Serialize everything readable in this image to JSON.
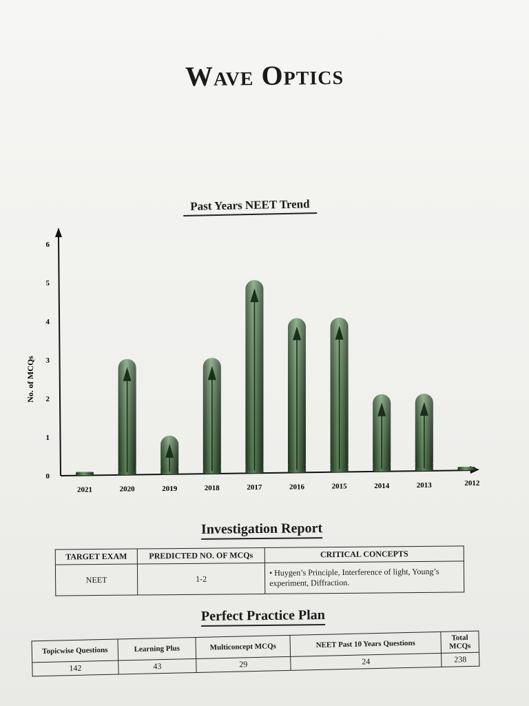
{
  "page": {
    "title": "Wave Optics"
  },
  "chart": {
    "heading": "Past Years NEET Trend"
  },
  "chart_data": {
    "type": "bar",
    "title": "Past Years NEET Trend",
    "xlabel": "",
    "ylabel": "No. of MCQs",
    "categories": [
      "2021",
      "2020",
      "2019",
      "2018",
      "2017",
      "2016",
      "2015",
      "2014",
      "2013",
      "2012"
    ],
    "values": [
      0,
      3,
      1,
      3,
      5,
      4,
      4,
      2,
      2,
      0
    ],
    "y_ticks": [
      "0",
      "1",
      "2",
      "3",
      "4",
      "5",
      "6"
    ],
    "ylim": [
      0,
      6
    ],
    "grid": false,
    "bar_color": "#3f6a3c"
  },
  "report": {
    "heading": "Investigation Report",
    "headers": [
      "TARGET EXAM",
      "PREDICTED NO. OF MCQs",
      "CRITICAL CONCEPTS"
    ],
    "row": {
      "exam": "NEET",
      "predicted": "1-2",
      "concepts": "• Huygen’s Principle, Interference of light, Young’s experiment, Diffraction."
    }
  },
  "plan": {
    "heading": "Perfect Practice Plan",
    "headers": [
      "Topicwise Questions",
      "Learning Plus",
      "Multiconcept MCQs",
      "NEET Past 10 Years Questions",
      "Total MCQs"
    ],
    "values": [
      "142",
      "43",
      "29",
      "24",
      "238"
    ]
  }
}
